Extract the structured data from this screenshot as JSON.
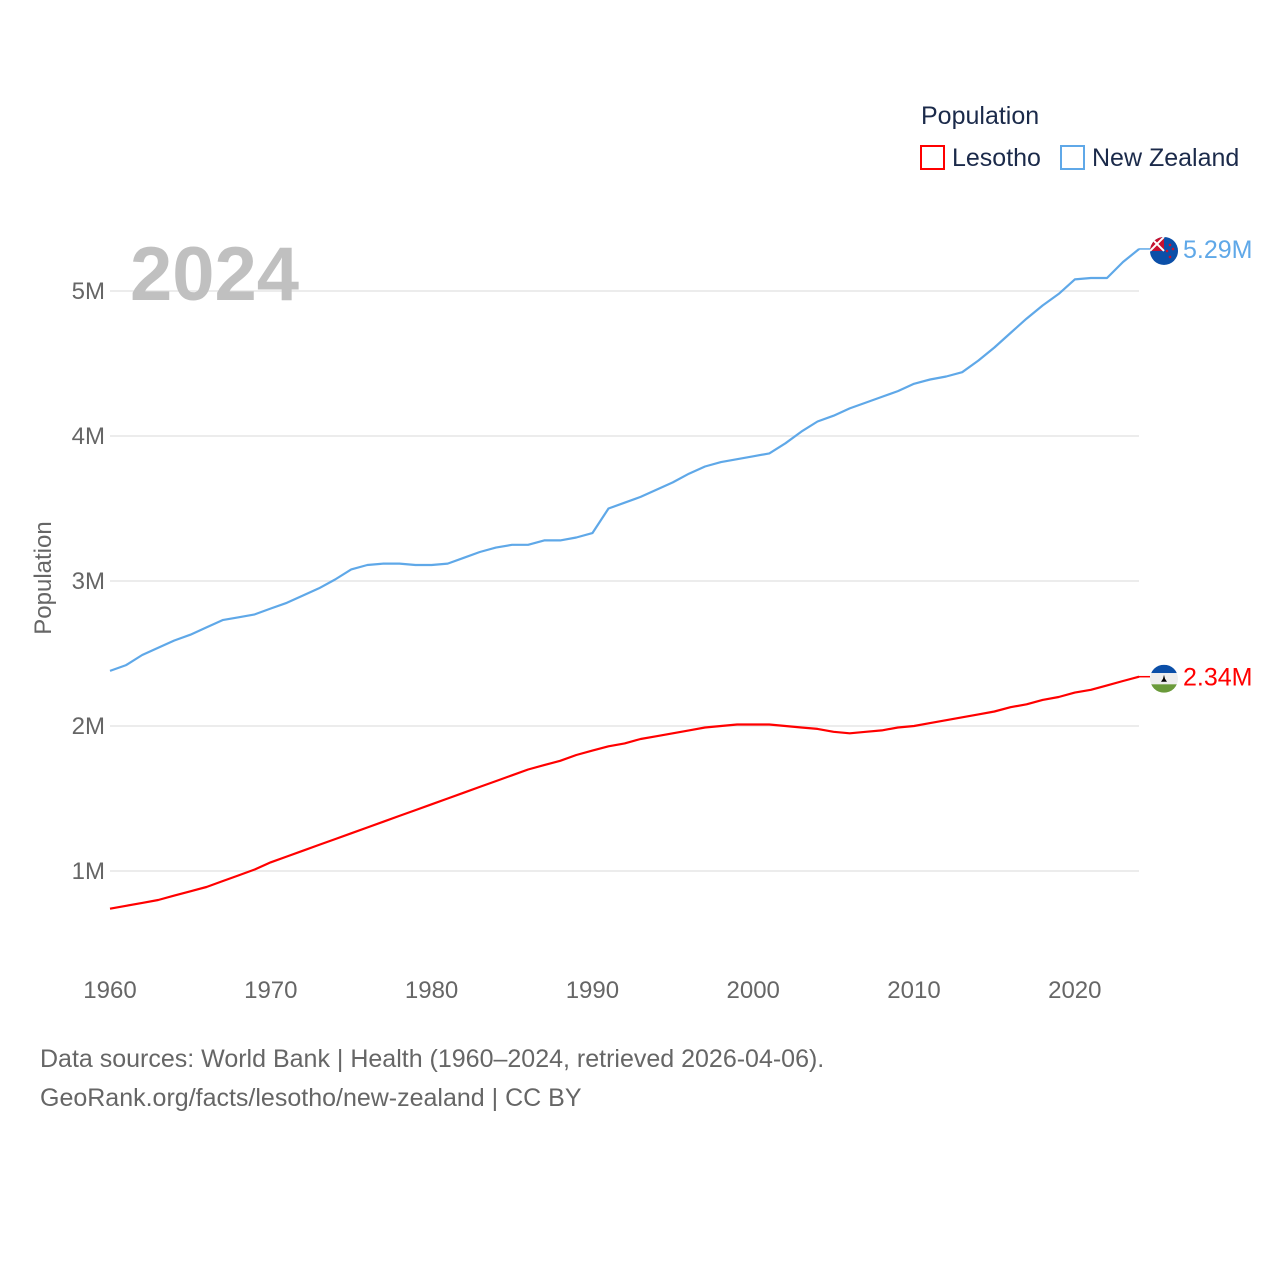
{
  "chart_data": {
    "type": "line",
    "title": "",
    "year_label": "2024",
    "ylabel": "Population",
    "xlabel": "",
    "legend": {
      "title": "Population",
      "placement": "top-right"
    },
    "x": [
      1960,
      1961,
      1962,
      1963,
      1964,
      1965,
      1966,
      1967,
      1968,
      1969,
      1970,
      1971,
      1972,
      1973,
      1974,
      1975,
      1976,
      1977,
      1978,
      1979,
      1980,
      1981,
      1982,
      1983,
      1984,
      1985,
      1986,
      1987,
      1988,
      1989,
      1990,
      1991,
      1992,
      1993,
      1994,
      1995,
      1996,
      1997,
      1998,
      1999,
      2000,
      2001,
      2002,
      2003,
      2004,
      2005,
      2006,
      2007,
      2008,
      2009,
      2010,
      2011,
      2012,
      2013,
      2014,
      2015,
      2016,
      2017,
      2018,
      2019,
      2020,
      2021,
      2022,
      2023,
      2024
    ],
    "xticks": [
      1960,
      1970,
      1980,
      1990,
      2000,
      2010,
      2020
    ],
    "xtick_labels": [
      "1960",
      "1970",
      "1980",
      "1990",
      "2000",
      "2010",
      "2020"
    ],
    "yticks": [
      1,
      2,
      3,
      4,
      5
    ],
    "ytick_labels": [
      "1M",
      "2M",
      "3M",
      "4M",
      "5M"
    ],
    "xlim": [
      1960,
      2024
    ],
    "ylim": [
      0,
      5.5
    ],
    "y_units": "millions",
    "grid": true,
    "series": [
      {
        "name": "Lesotho",
        "color": "#ff0000",
        "end_label": "2.34M",
        "values": [
          0.74,
          0.76,
          0.78,
          0.8,
          0.83,
          0.86,
          0.89,
          0.93,
          0.97,
          1.01,
          1.06,
          1.1,
          1.14,
          1.18,
          1.22,
          1.26,
          1.3,
          1.34,
          1.38,
          1.42,
          1.46,
          1.5,
          1.54,
          1.58,
          1.62,
          1.66,
          1.7,
          1.73,
          1.76,
          1.8,
          1.83,
          1.86,
          1.88,
          1.91,
          1.93,
          1.95,
          1.97,
          1.99,
          2.0,
          2.01,
          2.01,
          2.01,
          2.0,
          1.99,
          1.98,
          1.96,
          1.95,
          1.96,
          1.97,
          1.99,
          2.0,
          2.02,
          2.04,
          2.06,
          2.08,
          2.1,
          2.13,
          2.15,
          2.18,
          2.2,
          2.23,
          2.25,
          2.28,
          2.31,
          2.34
        ]
      },
      {
        "name": "New Zealand",
        "color": "#5fa8e8",
        "end_label": "5.29M",
        "values": [
          2.38,
          2.42,
          2.49,
          2.54,
          2.59,
          2.63,
          2.68,
          2.73,
          2.75,
          2.77,
          2.81,
          2.85,
          2.9,
          2.95,
          3.01,
          3.08,
          3.11,
          3.12,
          3.12,
          3.11,
          3.11,
          3.12,
          3.16,
          3.2,
          3.23,
          3.25,
          3.25,
          3.28,
          3.28,
          3.3,
          3.33,
          3.5,
          3.54,
          3.58,
          3.63,
          3.68,
          3.74,
          3.79,
          3.82,
          3.84,
          3.86,
          3.88,
          3.95,
          4.03,
          4.1,
          4.14,
          4.19,
          4.23,
          4.27,
          4.31,
          4.36,
          4.39,
          4.41,
          4.44,
          4.52,
          4.61,
          4.71,
          4.81,
          4.9,
          4.98,
          5.08,
          5.09,
          5.09,
          5.2,
          5.29
        ]
      }
    ]
  },
  "footer": {
    "line1": "Data sources: World Bank | Health (1960–2024, retrieved 2026-04-06).",
    "line2": "GeoRank.org/facts/lesotho/new-zealand | CC BY"
  }
}
